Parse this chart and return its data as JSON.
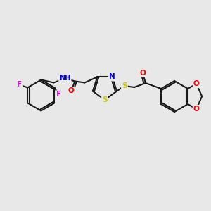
{
  "bg_color": "#e8e8e8",
  "bond_color": "#1a1a1a",
  "bond_lw": 1.5,
  "font_size": 7.5,
  "colors": {
    "F": "#ff00ff",
    "N": "#0000ff",
    "H": "#008080",
    "O": "#ff0000",
    "S": "#cccc00",
    "C": "#1a1a1a"
  }
}
